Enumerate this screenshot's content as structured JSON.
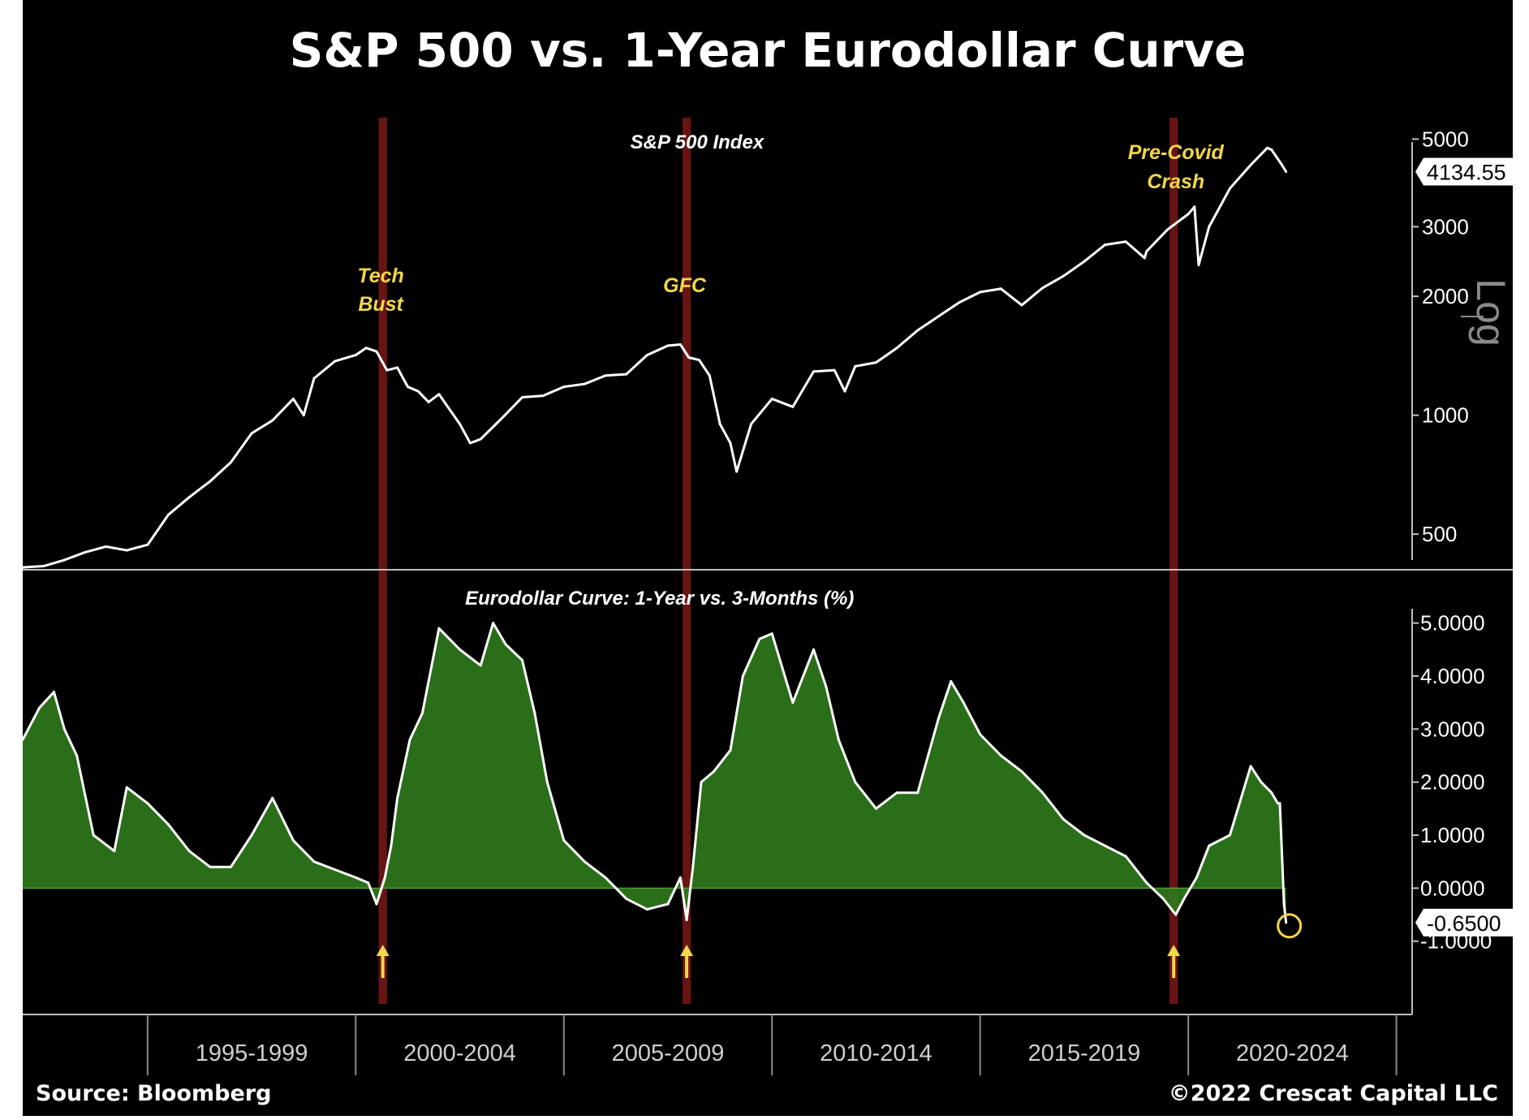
{
  "chart_title": "S&P 500 vs. 1-Year Eurodollar Curve",
  "source_note": "Source: Bloomberg",
  "copyright_note": "©2022 Crescat Capital LLC",
  "colors": {
    "background": "#000000",
    "line": "#ffffff",
    "recession_band": "#7a1818",
    "area_fill": "#2f7a1c",
    "annotation_yellow": "#f2d64b",
    "highlight_pink": "#f08a8a"
  },
  "x_axis": {
    "ticks": [
      "1995-1999",
      "2000-2004",
      "2005-2009",
      "2010-2014",
      "2015-2019",
      "2020-2024"
    ]
  },
  "recession_bands": [
    {
      "label": "Tech Bust",
      "start": 2000.55,
      "end": 2000.75
    },
    {
      "label": "GFC",
      "start": 2007.85,
      "end": 2008.05
    },
    {
      "label": "Pre-Covid Crash",
      "start": 2019.55,
      "end": 2019.75
    }
  ],
  "chart_data": [
    {
      "type": "line",
      "title": "S&P 500 Index",
      "scale_label": "Log",
      "yscale": "log",
      "ylim": [
        420,
        5800
      ],
      "y_ticks": [
        500,
        1000,
        2000,
        3000,
        5000
      ],
      "last_value_label": "4134.55",
      "annotations": [
        {
          "text": "Tech Bust",
          "x": 2000.6
        },
        {
          "text": "GFC",
          "x": 2007.9
        },
        {
          "text": "Pre-Covid Crash",
          "x": 2019.7
        }
      ],
      "x": [
        1992.0,
        1992.5,
        1993.0,
        1993.5,
        1994.0,
        1994.5,
        1995.0,
        1995.5,
        1996.0,
        1996.5,
        1997.0,
        1997.5,
        1998.0,
        1998.5,
        1998.75,
        1999.0,
        1999.5,
        2000.0,
        2000.25,
        2000.5,
        2000.75,
        2001.0,
        2001.25,
        2001.5,
        2001.75,
        2002.0,
        2002.5,
        2002.75,
        2003.0,
        2003.5,
        2004.0,
        2004.5,
        2005.0,
        2005.5,
        2006.0,
        2006.5,
        2007.0,
        2007.5,
        2007.8,
        2008.0,
        2008.25,
        2008.5,
        2008.75,
        2009.0,
        2009.15,
        2009.5,
        2010.0,
        2010.5,
        2011.0,
        2011.5,
        2011.75,
        2012.0,
        2012.5,
        2013.0,
        2013.5,
        2014.0,
        2014.5,
        2015.0,
        2015.5,
        2016.0,
        2016.5,
        2017.0,
        2017.5,
        2018.0,
        2018.5,
        2018.95,
        2019.0,
        2019.5,
        2020.0,
        2020.15,
        2020.25,
        2020.5,
        2021.0,
        2021.5,
        2021.9,
        2022.0,
        2022.25,
        2022.35
      ],
      "values": [
        412,
        415,
        430,
        450,
        465,
        455,
        470,
        560,
        620,
        680,
        760,
        900,
        970,
        1100,
        1000,
        1240,
        1370,
        1420,
        1480,
        1450,
        1300,
        1320,
        1180,
        1150,
        1080,
        1130,
        950,
        850,
        870,
        980,
        1110,
        1120,
        1180,
        1200,
        1260,
        1270,
        1420,
        1500,
        1510,
        1400,
        1380,
        1260,
        950,
        850,
        720,
        950,
        1100,
        1050,
        1290,
        1300,
        1150,
        1330,
        1360,
        1480,
        1640,
        1780,
        1930,
        2050,
        2090,
        1900,
        2100,
        2250,
        2450,
        2700,
        2750,
        2500,
        2600,
        2950,
        3230,
        3370,
        2400,
        3000,
        3750,
        4300,
        4750,
        4700,
        4300,
        4134.55
      ]
    },
    {
      "type": "area",
      "title": "Eurodollar Curve: 1-Year vs. 3-Months (%)",
      "ylim": [
        -2.0,
        5.5
      ],
      "y_ticks": [
        5.0,
        4.0,
        3.0,
        2.0,
        1.0,
        0.0,
        -1.0
      ],
      "y_tick_labels": [
        "5.0000",
        "4.0000",
        "3.0000",
        "2.0000",
        "1.0000",
        "0.0000",
        "-1.0000"
      ],
      "last_value_label": "-0.6500",
      "x": [
        1992.0,
        1992.4,
        1992.75,
        1993.0,
        1993.3,
        1993.7,
        1994.2,
        1994.5,
        1995.0,
        1995.5,
        1996.0,
        1996.5,
        1997.0,
        1997.5,
        1998.0,
        1998.5,
        1999.0,
        1999.5,
        2000.0,
        2000.3,
        2000.5,
        2000.7,
        2000.85,
        2001.0,
        2001.3,
        2001.6,
        2002.0,
        2002.5,
        2003.0,
        2003.3,
        2003.6,
        2004.0,
        2004.3,
        2004.6,
        2005.0,
        2005.5,
        2006.0,
        2006.5,
        2007.0,
        2007.5,
        2007.8,
        2007.95,
        2008.1,
        2008.3,
        2008.6,
        2009.0,
        2009.3,
        2009.7,
        2010.0,
        2010.5,
        2011.0,
        2011.3,
        2011.6,
        2012.0,
        2012.5,
        2013.0,
        2013.5,
        2014.0,
        2014.3,
        2014.6,
        2015.0,
        2015.5,
        2016.0,
        2016.5,
        2017.0,
        2017.5,
        2018.0,
        2018.5,
        2019.0,
        2019.4,
        2019.7,
        2019.9,
        2020.2,
        2020.5,
        2021.0,
        2021.5,
        2021.75,
        2022.0,
        2022.15,
        2022.2,
        2022.3,
        2022.35
      ],
      "values": [
        2.8,
        3.4,
        3.7,
        3.0,
        2.5,
        1.0,
        0.7,
        1.9,
        1.6,
        1.2,
        0.7,
        0.4,
        0.4,
        1.0,
        1.7,
        0.9,
        0.5,
        0.35,
        0.2,
        0.1,
        -0.3,
        0.2,
        0.8,
        1.7,
        2.8,
        3.3,
        4.9,
        4.5,
        4.2,
        5.0,
        4.6,
        4.3,
        3.3,
        2.0,
        0.9,
        0.5,
        0.2,
        -0.2,
        -0.4,
        -0.3,
        0.2,
        -0.6,
        0.4,
        2.0,
        2.2,
        2.6,
        4.0,
        4.7,
        4.8,
        3.5,
        4.5,
        3.8,
        2.8,
        2.0,
        1.5,
        1.8,
        1.8,
        3.2,
        3.9,
        3.5,
        2.9,
        2.5,
        2.2,
        1.8,
        1.3,
        1.0,
        0.8,
        0.6,
        0.1,
        -0.2,
        -0.5,
        -0.2,
        0.2,
        0.8,
        1.0,
        2.3,
        2.0,
        1.8,
        1.6,
        1.6,
        -0.3,
        -0.65
      ]
    }
  ]
}
